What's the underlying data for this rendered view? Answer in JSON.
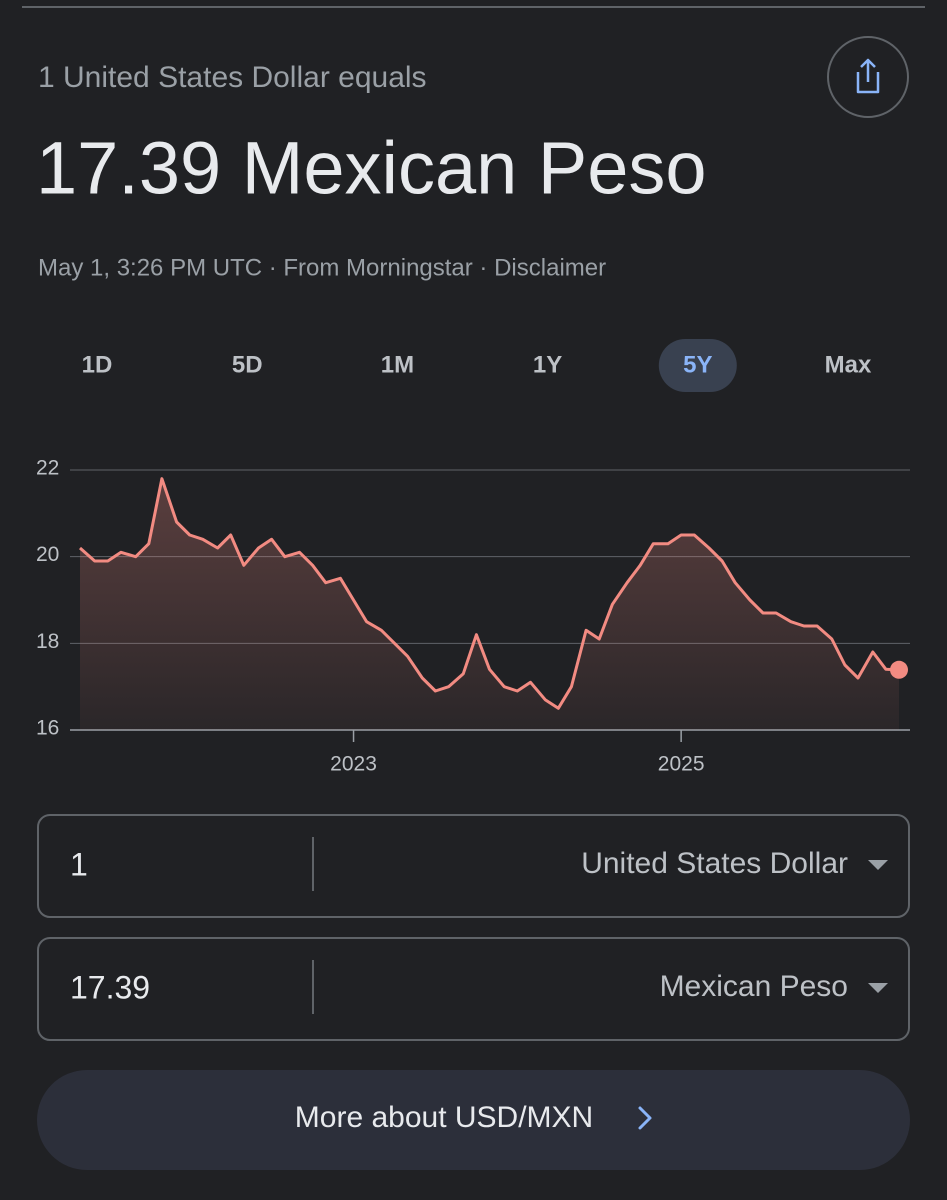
{
  "header": {
    "label": "1 United States Dollar equals",
    "result": "17.39 Mexican Peso",
    "meta": "May 1, 3:26 PM UTC · From Morningstar · Disclaimer"
  },
  "tabs": {
    "items": [
      "1D",
      "5D",
      "1M",
      "1Y",
      "5Y",
      "Max"
    ],
    "selected": 4
  },
  "chart_data": {
    "type": "line",
    "color": "#f28b82",
    "x": [
      2021.33,
      2021.42,
      2021.5,
      2021.58,
      2021.67,
      2021.75,
      2021.83,
      2021.92,
      2022,
      2022.08,
      2022.17,
      2022.25,
      2022.33,
      2022.42,
      2022.5,
      2022.58,
      2022.67,
      2022.75,
      2022.83,
      2022.92,
      2023,
      2023.08,
      2023.17,
      2023.25,
      2023.33,
      2023.42,
      2023.5,
      2023.58,
      2023.67,
      2023.75,
      2023.83,
      2023.92,
      2024,
      2024.08,
      2024.17,
      2024.25,
      2024.33,
      2024.42,
      2024.5,
      2024.58,
      2024.67,
      2024.75,
      2024.83,
      2024.92,
      2025,
      2025.08,
      2025.17,
      2025.25,
      2025.33,
      2025.42,
      2025.5,
      2025.58,
      2025.67,
      2025.75,
      2025.83,
      2025.92,
      2026,
      2026.08,
      2026.17,
      2026.25,
      2026.33
    ],
    "values": [
      20.2,
      19.9,
      19.9,
      20.1,
      20.0,
      20.3,
      21.8,
      20.8,
      20.5,
      20.4,
      20.2,
      20.5,
      19.8,
      20.2,
      20.4,
      20.0,
      20.1,
      19.8,
      19.4,
      19.5,
      19.0,
      18.5,
      18.3,
      18.0,
      17.7,
      17.2,
      16.9,
      17.0,
      17.3,
      18.2,
      17.4,
      17.0,
      16.9,
      17.1,
      16.7,
      16.5,
      17.0,
      18.3,
      18.1,
      18.9,
      19.4,
      19.8,
      20.3,
      20.3,
      20.5,
      20.5,
      20.2,
      19.9,
      19.4,
      19.0,
      18.7,
      18.7,
      18.5,
      18.4,
      18.4,
      18.1,
      17.5,
      17.2,
      17.8,
      17.4,
      17.39
    ],
    "xlim": [
      2021.33,
      2026.33
    ],
    "xticks": [
      2023,
      2025
    ],
    "ylim": [
      16,
      22
    ],
    "yticks": [
      16,
      18,
      20,
      22
    ],
    "grid": true
  },
  "converter": {
    "from": {
      "amount": "1",
      "currency": "United States Dollar"
    },
    "to": {
      "amount": "17.39",
      "currency": "Mexican Peso"
    }
  },
  "button": {
    "label": "More about USD/MXN"
  }
}
